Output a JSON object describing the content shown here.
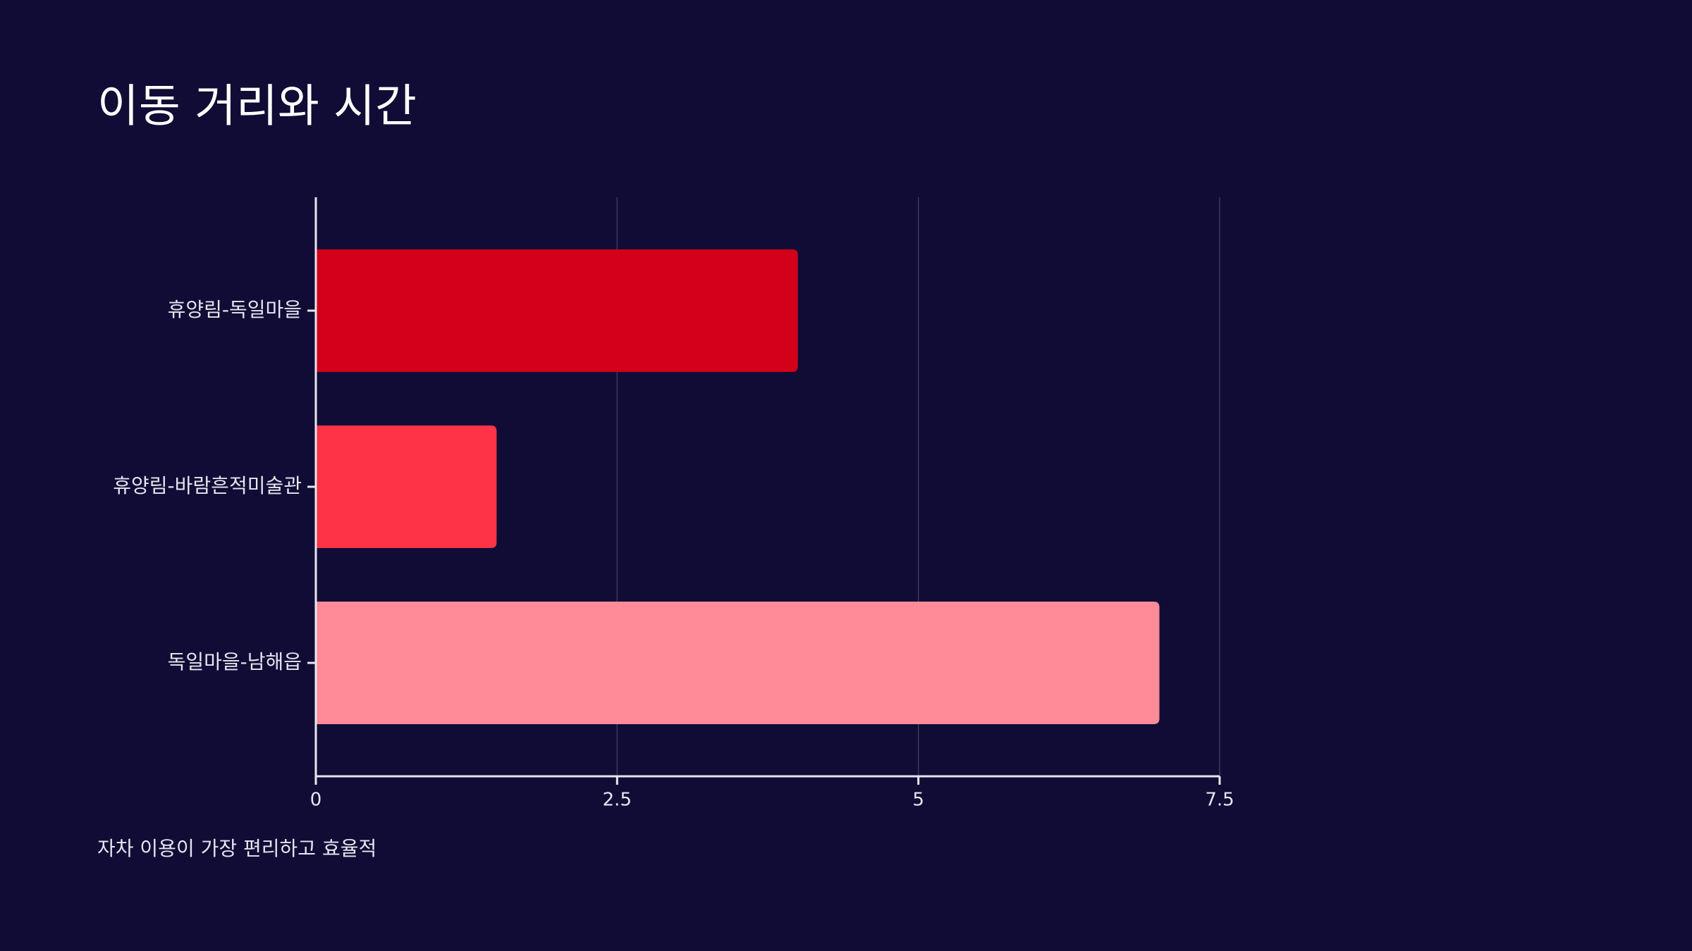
{
  "chart_data": {
    "type": "bar",
    "orientation": "horizontal",
    "title": "이동 거리와 시간",
    "note": "자차 이용이 가장 편리하고 효율적",
    "categories": [
      "휴양림-독일마을",
      "휴양림-바람흔적미술관",
      "독일마을-남해읍"
    ],
    "values": [
      4,
      1.5,
      7
    ],
    "colors": [
      "#d20019",
      "#ff3347",
      "#ff8a98"
    ],
    "xlim": [
      0,
      7.5
    ],
    "xticks": [
      0,
      2.5,
      5,
      7.5
    ],
    "grid": true
  }
}
